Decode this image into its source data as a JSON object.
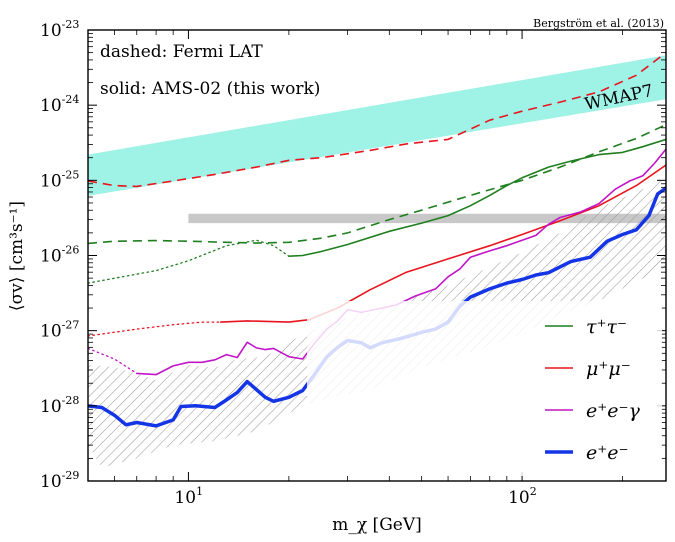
{
  "chart_data": {
    "type": "line",
    "citation": "Bergström et al. (2013)",
    "annotations": [
      "dashed: Fermi LAT",
      "solid: AMS-02 (this work)",
      "WMAP7"
    ],
    "xlabel": "m_χ [GeV]",
    "ylabel": "⟨σv⟩ [cm³s⁻¹]",
    "xscale": "log",
    "yscale": "log",
    "xlim": [
      5,
      270
    ],
    "ylim": [
      1e-29,
      1e-23
    ],
    "x_ticks": [
      10,
      100
    ],
    "x_tick_labels": [
      "10^1",
      "10^2"
    ],
    "y_ticks": [
      1e-29,
      1e-28,
      1e-27,
      1e-26,
      1e-25,
      1e-24,
      1e-23
    ],
    "y_tick_labels": [
      "10^-29",
      "10^-28",
      "10^-27",
      "10^-26",
      "10^-25",
      "10^-24",
      "10^-23"
    ],
    "grid": false,
    "legend_position": "lower-right",
    "legend": [
      "τ⁺τ⁻",
      "μ⁺μ⁻",
      "e⁺e⁻γ",
      "e⁺e⁻"
    ],
    "colors": {
      "tau": "#1f7f1f",
      "mu": "#e8141e",
      "eeg": "#c214c8",
      "ee": "#1435e6",
      "wmap": "#9ff2e6",
      "gray_band": "#c8c8c8",
      "hatch": "#9a9a9a"
    },
    "bands": [
      {
        "label": "WMAP7",
        "lower": [
          [
            5,
            6.2e-26
          ],
          [
            270,
            1.2e-24
          ]
        ],
        "upper": [
          [
            5,
            2.2e-25
          ],
          [
            270,
            4.6e-24
          ]
        ]
      },
      {
        "label": "",
        "lower": [
          [
            10,
            2.7e-26
          ],
          [
            270,
            2.7e-26
          ]
        ],
        "upper": [
          [
            10,
            3.6e-26
          ],
          [
            270,
            3.6e-26
          ]
        ]
      }
    ],
    "hatched_region": {
      "upper": [
        [
          5,
          3.5e-28
        ],
        [
          6,
          3.3e-28
        ],
        [
          8,
          2.2e-28
        ],
        [
          10,
          3.5e-28
        ],
        [
          12,
          3.2e-28
        ],
        [
          14,
          4.2e-28
        ],
        [
          17,
          4.5e-28
        ],
        [
          22,
          9e-28
        ],
        [
          28,
          1.4e-27
        ],
        [
          35,
          1.7e-27
        ],
        [
          45,
          2.6e-27
        ],
        [
          60,
          4e-27
        ],
        [
          80,
          7e-27
        ],
        [
          100,
          1.1e-26
        ],
        [
          130,
          2e-26
        ],
        [
          170,
          4.3e-26
        ],
        [
          220,
          7e-26
        ],
        [
          270,
          1.05e-25
        ]
      ],
      "lower": [
        [
          5,
          3e-29
        ],
        [
          5.5,
          1.5e-29
        ],
        [
          7,
          2e-29
        ],
        [
          9,
          3e-29
        ],
        [
          12,
          3.4e-29
        ],
        [
          16,
          4.6e-29
        ],
        [
          22,
          1e-28
        ],
        [
          28,
          1.35e-28
        ],
        [
          35,
          1.6e-28
        ],
        [
          45,
          2.7e-28
        ],
        [
          60,
          4.2e-28
        ],
        [
          80,
          6.2e-28
        ],
        [
          100,
          9e-28
        ],
        [
          130,
          1.6e-27
        ],
        [
          170,
          2.5e-27
        ],
        [
          220,
          4.5e-27
        ],
        [
          270,
          7e-27
        ]
      ]
    },
    "series": [
      {
        "name": "τ⁺τ⁻",
        "color_key": "tau",
        "style": "solid",
        "points": [
          [
            20,
            9.8e-27
          ],
          [
            22,
            1e-26
          ],
          [
            25,
            1.13e-26
          ],
          [
            30,
            1.4e-26
          ],
          [
            40,
            2.1e-26
          ],
          [
            50,
            2.7e-26
          ],
          [
            60,
            3.4e-26
          ],
          [
            70,
            4.6e-26
          ],
          [
            80,
            6.3e-26
          ],
          [
            90,
            8.5e-26
          ],
          [
            100,
            1.08e-25
          ],
          [
            120,
            1.5e-25
          ],
          [
            140,
            1.8e-25
          ],
          [
            170,
            2.2e-25
          ],
          [
            200,
            2.35e-25
          ],
          [
            230,
            2.8e-25
          ],
          [
            270,
            3.5e-25
          ]
        ]
      },
      {
        "name": "",
        "color_key": "tau",
        "style": "dotted",
        "points": [
          [
            5,
            4.3e-27
          ],
          [
            8,
            6.3e-27
          ],
          [
            10,
            8.5e-27
          ],
          [
            13,
            1.35e-26
          ],
          [
            16,
            1.6e-26
          ],
          [
            18,
            1.35e-26
          ],
          [
            20,
            9.8e-27
          ]
        ]
      },
      {
        "name": "",
        "color_key": "tau",
        "style": "dashed",
        "points": [
          [
            5,
            1.45e-26
          ],
          [
            6,
            1.55e-26
          ],
          [
            8,
            1.58e-26
          ],
          [
            10,
            1.55e-26
          ],
          [
            13,
            1.5e-26
          ],
          [
            16,
            1.46e-26
          ],
          [
            20,
            1.5e-26
          ],
          [
            25,
            1.7e-26
          ],
          [
            30,
            2e-26
          ],
          [
            40,
            3e-26
          ],
          [
            50,
            4e-26
          ],
          [
            70,
            6.3e-26
          ],
          [
            100,
            1e-25
          ],
          [
            130,
            1.5e-25
          ],
          [
            170,
            2.4e-25
          ],
          [
            220,
            3.6e-25
          ],
          [
            270,
            5.5e-25
          ]
        ]
      },
      {
        "name": "μ⁺μ⁻",
        "color_key": "mu",
        "style": "solid",
        "points": [
          [
            12.5,
            1.3e-27
          ],
          [
            15,
            1.35e-27
          ],
          [
            20,
            1.3e-27
          ],
          [
            23,
            1.4e-27
          ],
          [
            28,
            2e-27
          ],
          [
            35,
            3.5e-27
          ],
          [
            45,
            6e-27
          ],
          [
            60,
            9e-27
          ],
          [
            80,
            1.35e-26
          ],
          [
            100,
            1.9e-26
          ],
          [
            130,
            2.9e-26
          ],
          [
            170,
            4.6e-26
          ],
          [
            220,
            8.5e-26
          ],
          [
            270,
            1.6e-25
          ]
        ]
      },
      {
        "name": "",
        "color_key": "mu",
        "style": "dotted",
        "points": [
          [
            5,
            8.5e-28
          ],
          [
            7,
            1.05e-27
          ],
          [
            9,
            1.2e-27
          ],
          [
            11,
            1.3e-27
          ],
          [
            12.5,
            1.3e-27
          ]
        ]
      },
      {
        "name": "",
        "color_key": "mu",
        "style": "dashed",
        "points": [
          [
            5,
            9.8e-26
          ],
          [
            6,
            8.5e-26
          ],
          [
            7,
            8.3e-26
          ],
          [
            9,
            9.8e-26
          ],
          [
            12,
            1.2e-25
          ],
          [
            16,
            1.5e-25
          ],
          [
            20,
            1.85e-25
          ],
          [
            25,
            2e-25
          ],
          [
            35,
            2.5e-25
          ],
          [
            45,
            3.05e-25
          ],
          [
            60,
            3.5e-25
          ],
          [
            80,
            6.3e-25
          ],
          [
            100,
            8.3e-25
          ],
          [
            130,
            1.1e-24
          ],
          [
            170,
            1.5e-24
          ],
          [
            220,
            2.5e-24
          ],
          [
            270,
            5e-24
          ]
        ]
      },
      {
        "name": "e⁺e⁻γ",
        "color_key": "eeg",
        "style": "solid",
        "points": [
          [
            7,
            2.7e-28
          ],
          [
            8,
            2.6e-28
          ],
          [
            9,
            3.4e-28
          ],
          [
            10,
            3.8e-28
          ],
          [
            11,
            3.8e-28
          ],
          [
            12,
            4.1e-28
          ],
          [
            13,
            4.8e-28
          ],
          [
            14,
            4.4e-28
          ],
          [
            15,
            7e-28
          ],
          [
            16,
            5.9e-28
          ],
          [
            17,
            5.6e-28
          ],
          [
            18,
            5.8e-28
          ],
          [
            20,
            4.5e-28
          ],
          [
            22,
            4.2e-28
          ],
          [
            24,
            7e-28
          ],
          [
            26,
            1.05e-27
          ],
          [
            28,
            1.35e-27
          ],
          [
            30,
            1.9e-27
          ],
          [
            33,
            1.75e-27
          ],
          [
            37,
            1.95e-27
          ],
          [
            42,
            2.2e-27
          ],
          [
            48,
            2.9e-27
          ],
          [
            55,
            3.6e-27
          ],
          [
            60,
            5.2e-27
          ],
          [
            65,
            6.6e-27
          ],
          [
            70,
            9.5e-27
          ],
          [
            80,
            1.15e-26
          ],
          [
            90,
            1.35e-26
          ],
          [
            100,
            1.6e-26
          ],
          [
            110,
            1.85e-26
          ],
          [
            120,
            2.6e-26
          ],
          [
            130,
            3.2e-26
          ],
          [
            150,
            3.8e-26
          ],
          [
            170,
            4.9e-26
          ],
          [
            190,
            7.6e-26
          ],
          [
            210,
            9.8e-26
          ],
          [
            230,
            1.15e-25
          ],
          [
            250,
            1.7e-25
          ],
          [
            270,
            2.6e-25
          ]
        ]
      },
      {
        "name": "",
        "color_key": "eeg",
        "style": "dotted",
        "points": [
          [
            5,
            5.8e-28
          ],
          [
            6,
            4.2e-28
          ],
          [
            7,
            2.7e-28
          ]
        ]
      },
      {
        "name": "e⁺e⁻",
        "color_key": "ee",
        "style": "solid-thick",
        "points": [
          [
            5,
            1e-28
          ],
          [
            5.5,
            9.5e-29
          ],
          [
            6,
            7.5e-29
          ],
          [
            6.5,
            5.6e-29
          ],
          [
            7,
            6e-29
          ],
          [
            8,
            5.4e-29
          ],
          [
            9,
            6.5e-29
          ],
          [
            9.5,
            9.8e-29
          ],
          [
            10.5,
            1e-28
          ],
          [
            12,
            9.5e-29
          ],
          [
            13,
            1.2e-28
          ],
          [
            14,
            1.5e-28
          ],
          [
            15,
            2.1e-28
          ],
          [
            17,
            1.3e-28
          ],
          [
            18,
            1.15e-28
          ],
          [
            20,
            1.3e-28
          ],
          [
            22,
            1.6e-28
          ],
          [
            24,
            2.7e-28
          ],
          [
            26,
            4.5e-28
          ],
          [
            28,
            6e-28
          ],
          [
            30,
            7.4e-28
          ],
          [
            33,
            6.9e-28
          ],
          [
            35,
            5.9e-28
          ],
          [
            38,
            6.9e-28
          ],
          [
            42,
            7.6e-28
          ],
          [
            46,
            8.5e-28
          ],
          [
            50,
            9.5e-28
          ],
          [
            55,
            1.05e-27
          ],
          [
            60,
            1.3e-27
          ],
          [
            65,
            2.1e-27
          ],
          [
            70,
            2.8e-27
          ],
          [
            80,
            3.6e-27
          ],
          [
            90,
            4.3e-27
          ],
          [
            100,
            4.8e-27
          ],
          [
            110,
            5.5e-27
          ],
          [
            120,
            5.9e-27
          ],
          [
            140,
            8.3e-27
          ],
          [
            160,
            9.5e-27
          ],
          [
            180,
            1.55e-26
          ],
          [
            200,
            1.9e-26
          ],
          [
            220,
            2.2e-26
          ],
          [
            240,
            3.4e-26
          ],
          [
            255,
            6.6e-26
          ],
          [
            270,
            7.9e-26
          ]
        ]
      }
    ]
  }
}
